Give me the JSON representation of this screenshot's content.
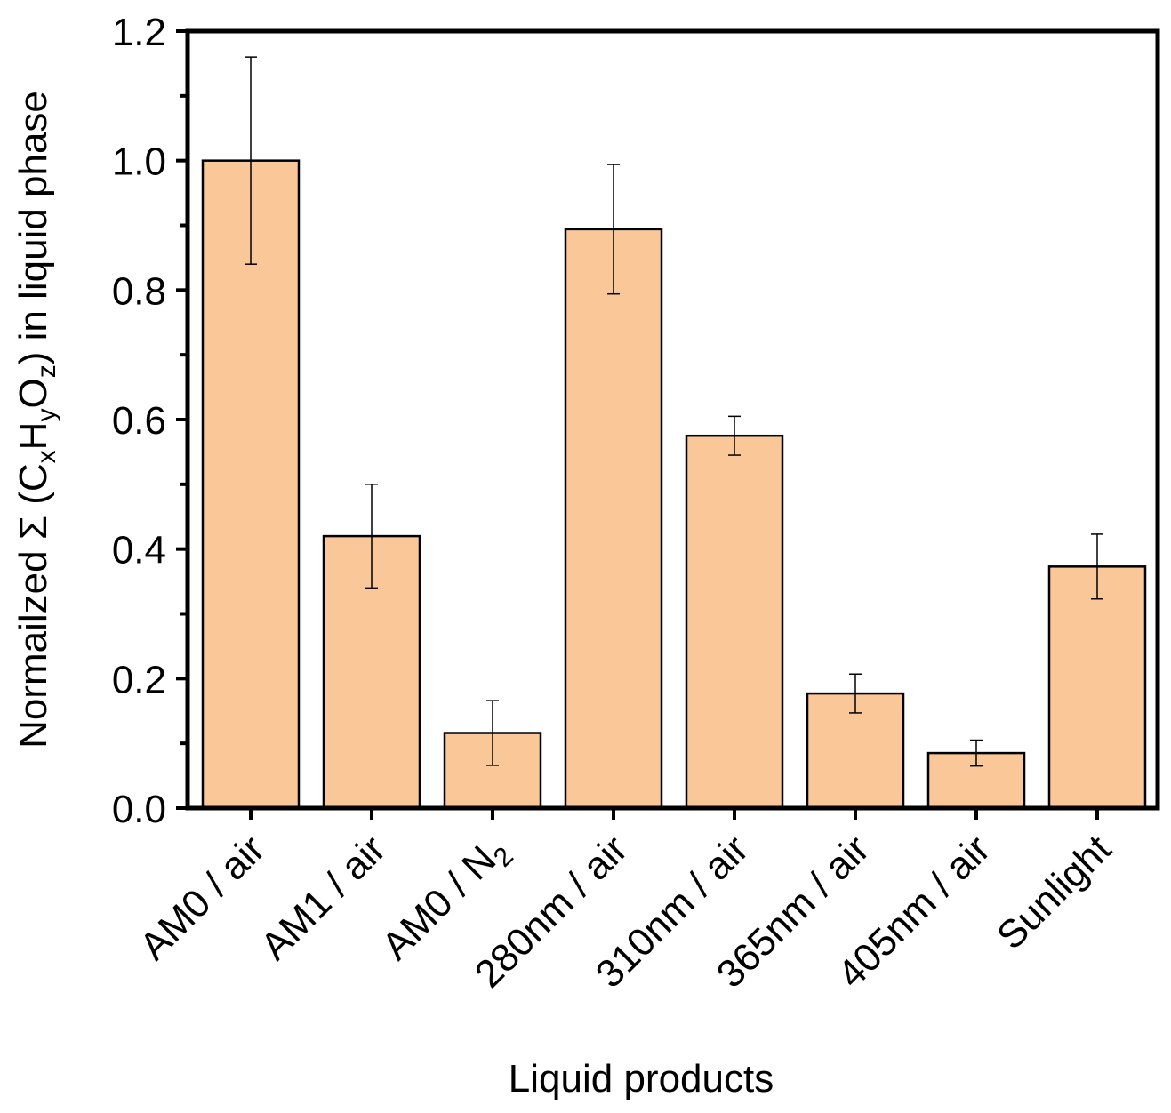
{
  "chart_data": {
    "type": "bar",
    "categories": [
      "AM0 / air",
      "AM1 / air",
      "AM0 / N",
      "280nm / air",
      "310nm / air",
      "365nm / air",
      "405nm / air",
      "Sunlight"
    ],
    "category_subscripts": [
      "",
      "",
      "2",
      "",
      "",
      "",
      "",
      ""
    ],
    "values": [
      1.0,
      0.42,
      0.116,
      0.894,
      0.575,
      0.177,
      0.085,
      0.373
    ],
    "errors": [
      0.16,
      0.08,
      0.05,
      0.1,
      0.03,
      0.03,
      0.02,
      0.05
    ],
    "ylim": [
      0,
      1.2
    ],
    "yticks": [
      "0.0",
      "0.2",
      "0.4",
      "0.6",
      "0.8",
      "1.0",
      "1.2"
    ],
    "xlabel": "Liquid products",
    "ylabel": {
      "prefix": "Normailzed Σ (C",
      "sub1": "x",
      "h": "H",
      "sub2": "y",
      "o": "O",
      "sub3": "z",
      "suffix": ") in liquid phase"
    },
    "bar_color": "#fac898",
    "edge_color": "#000000",
    "grid": false,
    "legend": "none"
  }
}
